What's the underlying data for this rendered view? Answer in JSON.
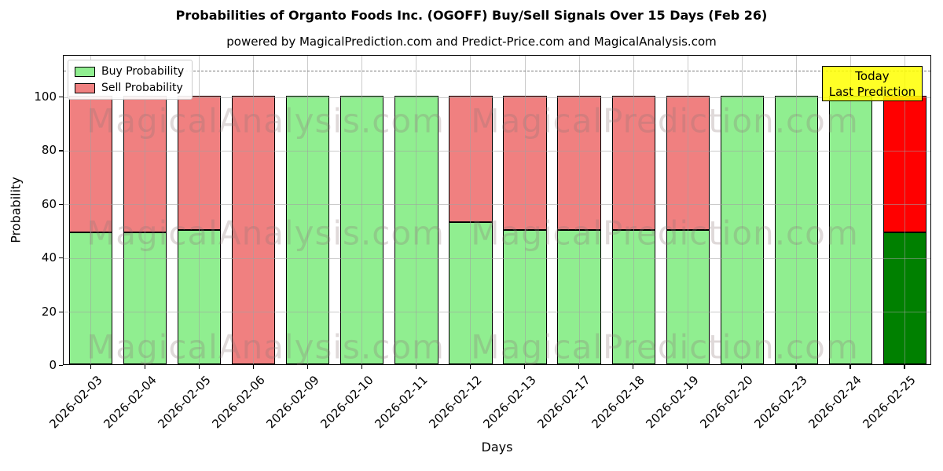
{
  "title": "Probabilities of Organto Foods Inc. (OGOFF) Buy/Sell Signals Over 15 Days (Feb 26)",
  "subtitle": "powered by MagicalPrediction.com and Predict-Price.com and MagicalAnalysis.com",
  "chart_data": {
    "type": "bar",
    "stacked": true,
    "title": "Probabilities of Organto Foods Inc. (OGOFF) Buy/Sell Signals Over 15 Days (Feb 26)",
    "xlabel": "Days",
    "ylabel": "Probability",
    "categories": [
      "2026-02-03",
      "2026-02-04",
      "2026-02-05",
      "2026-02-06",
      "2026-02-09",
      "2026-02-10",
      "2026-02-11",
      "2026-02-12",
      "2026-02-13",
      "2026-02-17",
      "2026-02-18",
      "2026-02-19",
      "2026-02-20",
      "2026-02-23",
      "2026-02-24",
      "2026-02-25"
    ],
    "series": [
      {
        "name": "Buy Probability",
        "values": [
          49,
          49,
          50,
          0,
          100,
          100,
          100,
          53,
          50,
          50,
          50,
          50,
          100,
          100,
          100,
          49
        ]
      },
      {
        "name": "Sell Probability",
        "values": [
          51,
          51,
          50,
          100,
          0,
          0,
          0,
          47,
          50,
          50,
          50,
          50,
          0,
          0,
          0,
          51
        ]
      }
    ],
    "today_index": 15,
    "yticks": [
      0,
      20,
      40,
      60,
      80,
      100
    ],
    "ylim": [
      0,
      115.5
    ],
    "dashed_line_y": 110,
    "grid": "horizontal and vertical, drawn above bars",
    "legend_position": "upper left"
  },
  "colors": {
    "buy_normal": "#90EE90",
    "sell_normal": "#F08080",
    "buy_today": "#008000",
    "sell_today": "#FF0000",
    "bar_edge": "#000000",
    "annotation_bg": "#FFFF00",
    "dashed_line": "#7a7a7a",
    "watermark": "rgba(140,120,120,0.28)"
  },
  "legend": {
    "items": [
      {
        "label": "Buy Probability",
        "color": "#90EE90"
      },
      {
        "label": "Sell Probability",
        "color": "#F08080"
      }
    ]
  },
  "annotation": {
    "line1": "Today",
    "line2": "Last Prediction"
  },
  "watermarks": {
    "left": "MagicalAnalysis.com",
    "right": "MagicalPrediction.com"
  },
  "axis": {
    "ylabel": "Probability",
    "xlabel": "Days",
    "ytick_labels": [
      "0",
      "20",
      "40",
      "60",
      "80",
      "100"
    ]
  }
}
